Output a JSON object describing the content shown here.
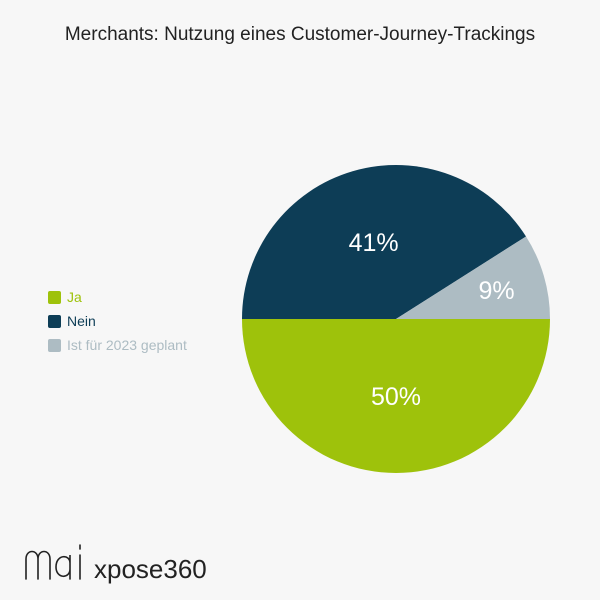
{
  "header": {
    "title": "Merchants: Nutzung eines Customer-Journey-Trackings"
  },
  "legend": {
    "items": [
      {
        "label": "Ja",
        "color": "#9ec20b"
      },
      {
        "label": "Nein",
        "color": "#0d3d56"
      },
      {
        "label": "Ist für 2023 geplant",
        "color": "#adbcc3"
      }
    ]
  },
  "chart_data": {
    "type": "pie",
    "title": "Merchants: Nutzung eines Customer-Journey-Trackings",
    "categories": [
      "Ja",
      "Nein",
      "Ist für 2023 geplant"
    ],
    "values": [
      50,
      41,
      9
    ],
    "labels": [
      "50%",
      "41%",
      "9%"
    ],
    "colors": [
      "#9ec20b",
      "#0d3d56",
      "#adbcc3"
    ],
    "legend_position": "left"
  },
  "brand": {
    "logo": "mai",
    "name": "xpose360"
  }
}
